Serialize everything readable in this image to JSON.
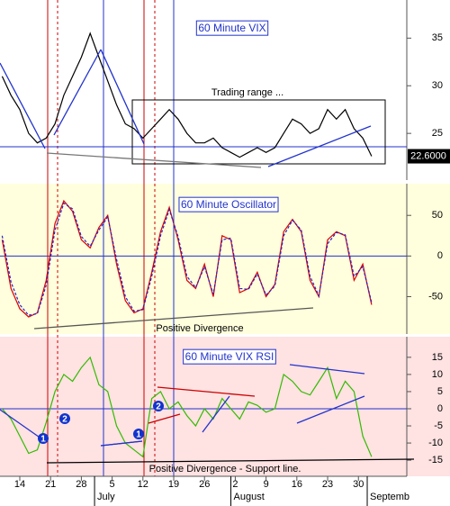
{
  "chart_data": [
    {
      "type": "line",
      "title": "60 Minute VIX",
      "xlim": [
        9.5,
        102
      ],
      "ylim": [
        20.1,
        39
      ],
      "yticks": [
        25,
        30,
        35
      ],
      "hline": 23.6,
      "x": [
        10,
        12,
        14,
        16,
        18,
        20,
        22,
        24,
        26,
        28,
        30,
        32,
        34,
        36,
        38,
        40,
        42,
        44,
        46,
        48,
        50,
        52,
        54,
        56,
        58,
        60,
        62,
        64,
        66,
        68,
        70,
        72,
        74,
        76,
        78,
        80,
        82,
        84,
        86,
        88,
        90,
        92,
        94
      ],
      "series": [
        {
          "color": "#000000",
          "values": [
            31,
            29,
            27.5,
            25,
            24,
            24.5,
            26,
            29,
            31,
            33,
            35.5,
            33,
            30.5,
            28,
            26,
            25.5,
            24.5,
            25.5,
            26.5,
            27.5,
            26.5,
            25,
            24,
            24,
            24.5,
            23.5,
            23,
            22.5,
            23,
            23.5,
            23,
            23.5,
            25,
            26.5,
            26,
            25,
            25.5,
            27.5,
            26.5,
            27.5,
            25.5,
            24.5,
            22.6
          ]
        }
      ],
      "last_value_label": "22.6000",
      "annotations": [
        "Trading range ..."
      ]
    },
    {
      "type": "line",
      "title": "60 Minute Oscillator",
      "xlim": [
        9.5,
        102
      ],
      "ylim": [
        -96,
        89
      ],
      "yticks": [
        50,
        0,
        -50
      ],
      "hline": 0,
      "x": [
        10,
        12,
        14,
        16,
        18,
        20,
        22,
        24,
        26,
        28,
        30,
        32,
        34,
        36,
        38,
        40,
        42,
        44,
        46,
        48,
        50,
        52,
        54,
        56,
        58,
        60,
        62,
        64,
        66,
        68,
        70,
        72,
        74,
        76,
        78,
        80,
        82,
        84,
        86,
        88,
        90,
        92,
        94
      ],
      "series": [
        {
          "color": "#dd0000",
          "values": [
            20,
            -40,
            -65,
            -75,
            -70,
            -30,
            40,
            68,
            55,
            20,
            10,
            35,
            50,
            -10,
            -55,
            -70,
            -65,
            -20,
            30,
            60,
            20,
            -30,
            -40,
            -10,
            -50,
            25,
            20,
            -45,
            -40,
            -20,
            -50,
            -35,
            30,
            45,
            30,
            -30,
            -50,
            20,
            30,
            25,
            -30,
            -10,
            -60
          ]
        },
        {
          "color": "#2222cc",
          "values": [
            25,
            -32,
            -60,
            -73,
            -71,
            -36,
            32,
            65,
            58,
            24,
            12,
            32,
            48,
            -4,
            -50,
            -68,
            -66,
            -25,
            25,
            57,
            24,
            -25,
            -39,
            -13,
            -47,
            20,
            22,
            -40,
            -41,
            -22,
            -48,
            -37,
            25,
            44,
            32,
            -25,
            -49,
            15,
            29,
            26,
            -25,
            -13,
            -57
          ]
        }
      ],
      "annotations": [
        "Positive Divergence"
      ]
    },
    {
      "type": "line",
      "title": "60 Minute VIX RSI",
      "xlim": [
        9.5,
        102
      ],
      "ylim": [
        -19.7,
        21
      ],
      "yticks": [
        15,
        10,
        5,
        0,
        -5,
        -10,
        -15
      ],
      "hline": 0,
      "x": [
        10,
        12,
        14,
        16,
        18,
        20,
        22,
        24,
        26,
        28,
        30,
        32,
        34,
        36,
        38,
        40,
        42,
        44,
        46,
        48,
        50,
        52,
        54,
        56,
        58,
        60,
        62,
        64,
        66,
        68,
        70,
        72,
        74,
        76,
        78,
        80,
        82,
        84,
        86,
        88,
        90,
        92,
        94
      ],
      "series": [
        {
          "color": "#33bb00",
          "values": [
            0,
            -3,
            -8,
            -13,
            -12,
            -4,
            5,
            10,
            8,
            12,
            15,
            7,
            5,
            -5,
            -10,
            -12,
            -14,
            3,
            5,
            0,
            2,
            -2,
            -5,
            0,
            -3,
            3,
            0,
            -3,
            2,
            1,
            -1,
            0,
            10,
            8,
            5,
            4,
            8,
            12,
            3,
            8,
            5,
            -8,
            -14
          ]
        }
      ],
      "annotations": [
        "Positive Divergence - Support line.",
        "1",
        "2",
        "1",
        "2"
      ],
      "xticks": [
        {
          "value": 14,
          "label": "14"
        },
        {
          "value": 21,
          "label": "21"
        },
        {
          "value": 28,
          "label": "28"
        },
        {
          "value": 35,
          "label": "5"
        },
        {
          "value": 42,
          "label": "12"
        },
        {
          "value": 49,
          "label": "19"
        },
        {
          "value": 56,
          "label": "26"
        },
        {
          "value": 63,
          "label": "2"
        },
        {
          "value": 70,
          "label": "9"
        },
        {
          "value": 77,
          "label": "16"
        },
        {
          "value": 84,
          "label": "23"
        },
        {
          "value": 91,
          "label": "30"
        }
      ],
      "month_ticks": [
        {
          "value": 31,
          "label": "July"
        },
        {
          "value": 62,
          "label": "August"
        },
        {
          "value": 93,
          "label": "Septemb"
        }
      ]
    }
  ]
}
